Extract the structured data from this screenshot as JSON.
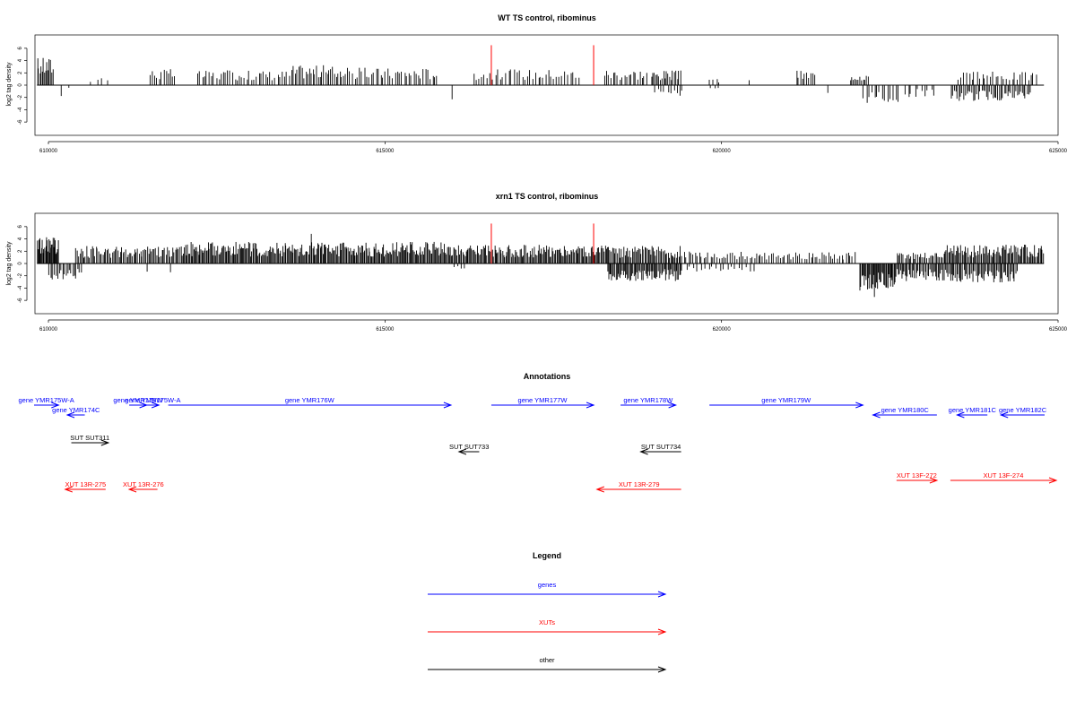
{
  "colors": {
    "gene": "#0000ff",
    "xut": "#ff0000",
    "other": "#000000",
    "marker": "#ff0000",
    "axis": "#000000"
  },
  "x_axis": {
    "min": 609800,
    "max": 625000,
    "ticks": [
      {
        "value": 610000,
        "label": "610000"
      },
      {
        "value": 615000,
        "label": "615000"
      },
      {
        "value": 620000,
        "label": "620000"
      },
      {
        "value": 625000,
        "label": "625000"
      }
    ]
  },
  "marker_positions": [
    616580,
    618100
  ],
  "chart_data": [
    {
      "type": "bar",
      "title": "WT TS control, ribominus",
      "ylabel": "log2 tag density",
      "ylim": [
        -7,
        7
      ],
      "yticks": [
        -6,
        -4,
        -2,
        0,
        2,
        4,
        6
      ],
      "x_range": [
        609830,
        624790
      ],
      "markers": [
        {
          "x": 616580,
          "y": 6.5
        },
        {
          "x": 618100,
          "y": 6.5
        }
      ],
      "segments": [
        {
          "from": 609830,
          "to": 610080,
          "n": 14,
          "dir": 1,
          "amp": 4.2
        },
        {
          "from": 610150,
          "to": 610220,
          "n": 1,
          "dir": -1,
          "amp": 2.2
        },
        {
          "from": 610300,
          "to": 610350,
          "n": 1,
          "dir": -1,
          "amp": 0.9
        },
        {
          "from": 610600,
          "to": 610900,
          "n": 4,
          "dir": 1,
          "amp": 1.4
        },
        {
          "from": 611500,
          "to": 611900,
          "n": 12,
          "dir": 1,
          "amp": 2.4
        },
        {
          "from": 612200,
          "to": 613600,
          "n": 40,
          "dir": 1,
          "amp": 2.2
        },
        {
          "from": 613600,
          "to": 614400,
          "n": 30,
          "dir": 1,
          "amp": 3.0
        },
        {
          "from": 614400,
          "to": 615800,
          "n": 40,
          "dir": 1,
          "amp": 2.6
        },
        {
          "from": 615990,
          "to": 616020,
          "n": 1,
          "dir": -1,
          "amp": 2.2
        },
        {
          "from": 616300,
          "to": 617900,
          "n": 40,
          "dir": 1,
          "amp": 2.4
        },
        {
          "from": 618250,
          "to": 618900,
          "n": 20,
          "dir": 1,
          "amp": 2.4
        },
        {
          "from": 618950,
          "to": 619400,
          "n": 20,
          "dir": 1,
          "amp": 2.2
        },
        {
          "from": 619000,
          "to": 619450,
          "n": 10,
          "dir": -1,
          "amp": 1.6
        },
        {
          "from": 619800,
          "to": 620000,
          "n": 4,
          "dir": 1,
          "amp": 1.0
        },
        {
          "from": 619800,
          "to": 620000,
          "n": 3,
          "dir": -1,
          "amp": 0.9
        },
        {
          "from": 620400,
          "to": 620450,
          "n": 1,
          "dir": 1,
          "amp": 0.8
        },
        {
          "from": 621100,
          "to": 621400,
          "n": 10,
          "dir": 1,
          "amp": 2.2
        },
        {
          "from": 621500,
          "to": 621600,
          "n": 1,
          "dir": -1,
          "amp": 1.4
        },
        {
          "from": 621900,
          "to": 622200,
          "n": 12,
          "dir": 1,
          "amp": 2.0
        },
        {
          "from": 622100,
          "to": 622650,
          "n": 14,
          "dir": -1,
          "amp": 2.8
        },
        {
          "from": 622700,
          "to": 623200,
          "n": 10,
          "dir": -1,
          "amp": 1.8
        },
        {
          "from": 623400,
          "to": 624600,
          "n": 50,
          "dir": -1,
          "amp": 2.4
        },
        {
          "from": 623500,
          "to": 624700,
          "n": 30,
          "dir": 1,
          "amp": 2.0
        }
      ]
    },
    {
      "type": "bar",
      "title": "xrn1 TS control, ribominus",
      "ylabel": "log2 tag density",
      "ylim": [
        -7,
        7
      ],
      "yticks": [
        -6,
        -4,
        -2,
        0,
        2,
        4,
        6
      ],
      "x_range": [
        609830,
        624790
      ],
      "markers": [
        {
          "x": 616580,
          "y": 6.5
        },
        {
          "x": 618100,
          "y": 6.5
        }
      ],
      "segments": [
        {
          "from": 609830,
          "to": 610150,
          "n": 30,
          "dir": 1,
          "amp": 4.0
        },
        {
          "from": 610000,
          "to": 610500,
          "n": 20,
          "dir": -1,
          "amp": 2.4
        },
        {
          "from": 610400,
          "to": 612000,
          "n": 80,
          "dir": 1,
          "amp": 2.6
        },
        {
          "from": 611400,
          "to": 611500,
          "n": 1,
          "dir": -1,
          "amp": 3.1
        },
        {
          "from": 611800,
          "to": 611900,
          "n": 1,
          "dir": -1,
          "amp": 2.0
        },
        {
          "from": 612000,
          "to": 616000,
          "n": 260,
          "dir": 1,
          "amp": 3.2
        },
        {
          "from": 613900,
          "to": 613950,
          "n": 1,
          "dir": 1,
          "amp": 6.6
        },
        {
          "from": 616000,
          "to": 618300,
          "n": 140,
          "dir": 1,
          "amp": 2.8
        },
        {
          "from": 616000,
          "to": 616200,
          "n": 4,
          "dir": -1,
          "amp": 1.0
        },
        {
          "from": 618300,
          "to": 619400,
          "n": 60,
          "dir": 1,
          "amp": 2.6
        },
        {
          "from": 618300,
          "to": 619400,
          "n": 70,
          "dir": -1,
          "amp": 2.6
        },
        {
          "from": 619400,
          "to": 622000,
          "n": 80,
          "dir": 1,
          "amp": 1.8
        },
        {
          "from": 619400,
          "to": 620500,
          "n": 20,
          "dir": -1,
          "amp": 1.2
        },
        {
          "from": 622050,
          "to": 622600,
          "n": 40,
          "dir": -1,
          "amp": 4.0
        },
        {
          "from": 622250,
          "to": 622300,
          "n": 1,
          "dir": -1,
          "amp": 6.8
        },
        {
          "from": 622600,
          "to": 623300,
          "n": 40,
          "dir": -1,
          "amp": 2.6
        },
        {
          "from": 622600,
          "to": 623300,
          "n": 30,
          "dir": 1,
          "amp": 1.6
        },
        {
          "from": 623300,
          "to": 624790,
          "n": 90,
          "dir": 1,
          "amp": 2.8
        },
        {
          "from": 623300,
          "to": 624400,
          "n": 60,
          "dir": -1,
          "amp": 2.8
        }
      ]
    }
  ],
  "annotations": {
    "title": "Annotations",
    "items": [
      {
        "kind": "gene",
        "label": "gene YMR175W-A",
        "from": 609780,
        "to": 610150,
        "dir": 1,
        "row": 0
      },
      {
        "kind": "gene",
        "label": "gene YMR174C",
        "from": 610280,
        "to": 610540,
        "dir": -1,
        "row": 1
      },
      {
        "kind": "gene",
        "label": "gene YMR175W",
        "from": 611200,
        "to": 611460,
        "dir": 1,
        "row": 0
      },
      {
        "kind": "gene",
        "label": "gene YMR175W-A",
        "from": 611460,
        "to": 611640,
        "dir": 1,
        "row": 0
      },
      {
        "kind": "gene",
        "label": "gene YMR176W",
        "from": 611780,
        "to": 615980,
        "dir": 1,
        "row": 0
      },
      {
        "kind": "gene",
        "label": "gene YMR177W",
        "from": 616580,
        "to": 618100,
        "dir": 1,
        "row": 0
      },
      {
        "kind": "gene",
        "label": "gene YMR178W",
        "from": 618500,
        "to": 619320,
        "dir": 1,
        "row": 0
      },
      {
        "kind": "gene",
        "label": "gene YMR179W",
        "from": 619820,
        "to": 622100,
        "dir": 1,
        "row": 0
      },
      {
        "kind": "gene",
        "label": "gene YMR180C",
        "from": 622250,
        "to": 623200,
        "dir": -1,
        "row": 1
      },
      {
        "kind": "gene",
        "label": "gene YMR181C",
        "from": 623500,
        "to": 623950,
        "dir": -1,
        "row": 1
      },
      {
        "kind": "gene",
        "label": "gene YMR182C",
        "from": 624150,
        "to": 624800,
        "dir": -1,
        "row": 1
      },
      {
        "kind": "other",
        "label": "SUT SUT311",
        "from": 610340,
        "to": 610890,
        "dir": 1,
        "row": 2
      },
      {
        "kind": "other",
        "label": "SUT SUT733",
        "from": 616100,
        "to": 616400,
        "dir": -1,
        "row": 3
      },
      {
        "kind": "other",
        "label": "SUT SUT734",
        "from": 618800,
        "to": 619400,
        "dir": -1,
        "row": 3
      },
      {
        "kind": "xut",
        "label": "XUT 13R-275",
        "from": 610250,
        "to": 610850,
        "dir": -1,
        "row": 5
      },
      {
        "kind": "xut",
        "label": "XUT 13R-276",
        "from": 611200,
        "to": 611620,
        "dir": -1,
        "row": 5
      },
      {
        "kind": "xut",
        "label": "XUT 13R-279",
        "from": 618150,
        "to": 619400,
        "dir": -1,
        "row": 5
      },
      {
        "kind": "xut",
        "label": "XUT 13F-272",
        "from": 622600,
        "to": 623200,
        "dir": 1,
        "row": 4
      },
      {
        "kind": "xut",
        "label": "XUT 13F-274",
        "from": 623400,
        "to": 625200,
        "dir": 1,
        "row": 4
      }
    ]
  },
  "legend": {
    "title": "Legend",
    "items": [
      {
        "label": "genes",
        "kind": "gene"
      },
      {
        "label": "XUTs",
        "kind": "xut"
      },
      {
        "label": "other",
        "kind": "other"
      }
    ]
  }
}
